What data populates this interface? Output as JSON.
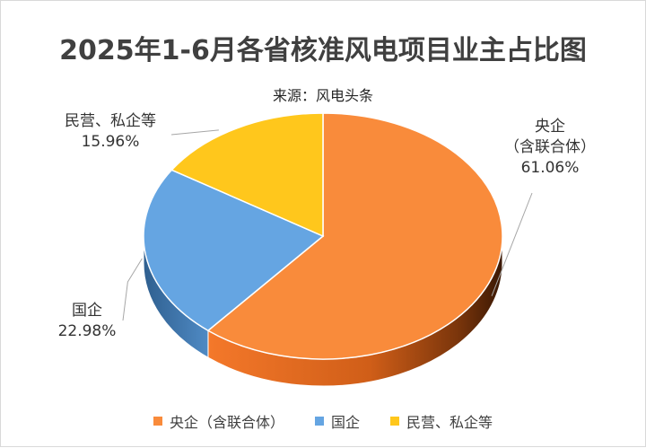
{
  "chart_data": {
    "type": "pie",
    "title": "2025年1-6月各省核准风电项目业主占比图",
    "subtitle": "来源：风电头条",
    "series": [
      {
        "name": "央企（含联合体）",
        "label_lines": [
          "央企",
          "（含联合体）"
        ],
        "value": 61.06,
        "value_label": "61.06%",
        "color": "#f98b3b"
      },
      {
        "name": "国企",
        "label_lines": [
          "国企"
        ],
        "value": 22.98,
        "value_label": "22.98%",
        "color": "#65a5e2"
      },
      {
        "name": "民营、私企等",
        "label_lines": [
          "民营、私企等"
        ],
        "value": 15.96,
        "value_label": "15.96%",
        "color": "#ffc71c"
      }
    ],
    "legend_position": "bottom"
  }
}
